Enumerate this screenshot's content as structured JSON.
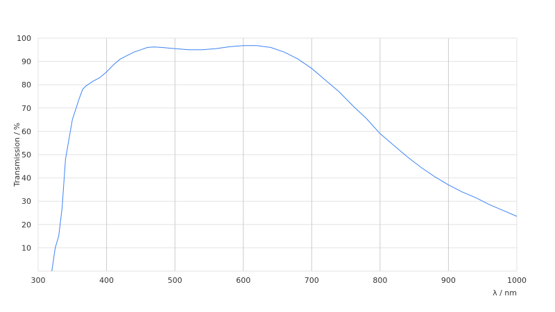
{
  "chart_data": {
    "type": "line",
    "xlabel": "λ / nm",
    "ylabel": "Transmission / %",
    "xlim": [
      300,
      1000
    ],
    "ylim": [
      0,
      100
    ],
    "xticks": [
      "300",
      "400",
      "500",
      "600",
      "700",
      "800",
      "900",
      "1000"
    ],
    "yticks": [
      "10",
      "20",
      "30",
      "40",
      "50",
      "60",
      "70",
      "80",
      "90",
      "100"
    ],
    "grid": true,
    "line_color": "#3b82f6",
    "series": [
      {
        "x": [
          320,
          325,
          330,
          335,
          340,
          350,
          360,
          365,
          370,
          380,
          390,
          400,
          410,
          420,
          430,
          440,
          450,
          460,
          470,
          480,
          500,
          520,
          540,
          560,
          580,
          600,
          620,
          640,
          660,
          680,
          700,
          720,
          740,
          760,
          780,
          800,
          820,
          840,
          860,
          880,
          900,
          920,
          940,
          960,
          980,
          1000
        ],
        "y": [
          0,
          10,
          15,
          27,
          48,
          65,
          74,
          78,
          79.5,
          81.5,
          83,
          85.5,
          88.5,
          91,
          92.5,
          94,
          95,
          96,
          96.2,
          96,
          95.5,
          95,
          95,
          95.5,
          96.3,
          96.8,
          96.8,
          96,
          94,
          91,
          87,
          82,
          77,
          71,
          65.5,
          59,
          54,
          49,
          44.5,
          40.5,
          37,
          34,
          31.5,
          28.5,
          26,
          23.5
        ]
      }
    ]
  }
}
